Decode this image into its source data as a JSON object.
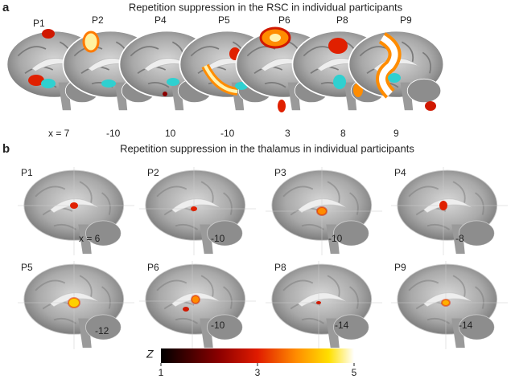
{
  "panel_a": {
    "letter": "a",
    "title": "Repetition suppression in the RSC in individual participants",
    "participants": [
      "P1",
      "P2",
      "P4",
      "P5",
      "P6",
      "P8",
      "P9"
    ],
    "coordinates": [
      "x = 7",
      "-10",
      "10",
      "-10",
      "3",
      "8",
      "9"
    ]
  },
  "panel_b": {
    "letter": "b",
    "title": "Repetition suppression in the thalamus in individual participants",
    "rows": [
      {
        "participants": [
          "P1",
          "P2",
          "P3",
          "P4"
        ],
        "coordinates": [
          "x = 6",
          "-10",
          "-10",
          "-8"
        ]
      },
      {
        "participants": [
          "P5",
          "P6",
          "P8",
          "P9"
        ],
        "coordinates": [
          "-12",
          "-10",
          "-14",
          "-14"
        ]
      }
    ]
  },
  "colorbar": {
    "label": "Z",
    "ticks": [
      1,
      3,
      5
    ]
  }
}
